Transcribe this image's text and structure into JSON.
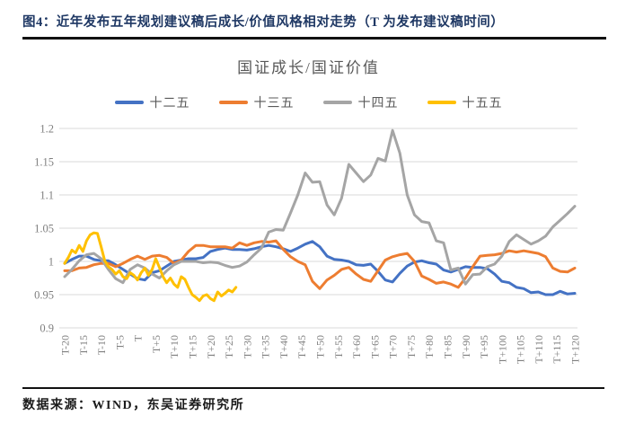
{
  "header": {
    "title": "图4：近年发布五年规划建议稿后成长/价值风格相对走势（T 为发布建议稿时间）"
  },
  "footer": {
    "source": "数据来源：WIND，东吴证券研究所"
  },
  "colors": {
    "heading": "#1F3864",
    "rule": "#111111",
    "axis_text": "#7F7F7F",
    "grid": "#D9D9D9",
    "chart_title_text": "#595959"
  },
  "chart_data": {
    "type": "line",
    "title": "国证成长/国证价值",
    "grid": true,
    "legend_position": "top",
    "ylim": [
      0.9,
      1.2
    ],
    "y_ticks": [
      "1.2",
      "1.15",
      "1.1",
      "1.05",
      "1",
      "0.95",
      "0.9"
    ],
    "x_range": [
      -20,
      120
    ],
    "x_ticks": [
      "T-20",
      "T-15",
      "T-10",
      "T-5",
      "T",
      "T+5",
      "T+10",
      "T+15",
      "T+20",
      "T+25",
      "T+30",
      "T+35",
      "T+40",
      "T+45",
      "T+50",
      "T+55",
      "T+60",
      "T+65",
      "T+70",
      "T+75",
      "T+80",
      "T+85",
      "T+90",
      "T+95",
      "T+100",
      "T+105",
      "T+110",
      "T+115",
      "T+120"
    ],
    "series": [
      {
        "name": "十二五",
        "color": "#4472C4",
        "x_start": -20,
        "x_step": 2,
        "values": [
          0.997,
          1.003,
          1.008,
          1.008,
          1.003,
          1.001,
          1.001,
          0.995,
          0.988,
          0.981,
          0.974,
          0.972,
          0.983,
          0.986,
          0.993,
          1.0,
          1.002,
          1.004,
          1.004,
          1.006,
          1.015,
          1.018,
          1.02,
          1.018,
          1.018,
          1.017,
          1.019,
          1.022,
          1.024,
          1.022,
          1.019,
          1.015,
          1.02,
          1.026,
          1.03,
          1.022,
          1.008,
          1.003,
          1.002,
          1.0,
          0.995,
          0.994,
          0.996,
          0.985,
          0.972,
          0.969,
          0.982,
          0.993,
          0.999,
          1.001,
          0.998,
          0.996,
          0.987,
          0.984,
          0.988,
          0.992,
          0.991,
          0.991,
          0.989,
          0.981,
          0.97,
          0.968,
          0.961,
          0.959,
          0.953,
          0.954,
          0.95,
          0.95,
          0.955,
          0.951,
          0.952
        ]
      },
      {
        "name": "十三五",
        "color": "#ED7D31",
        "x_start": -20,
        "x_step": 2,
        "values": [
          0.986,
          0.986,
          0.99,
          0.991,
          0.995,
          0.997,
          0.997,
          0.992,
          0.997,
          1.003,
          1.008,
          1.003,
          1.008,
          1.009,
          1.006,
          0.997,
          1.002,
          1.015,
          1.024,
          1.024,
          1.022,
          1.022,
          1.022,
          1.02,
          1.028,
          1.024,
          1.028,
          1.03,
          1.029,
          1.031,
          1.018,
          1.007,
          1.0,
          0.995,
          0.97,
          0.959,
          0.972,
          0.979,
          0.988,
          0.991,
          0.981,
          0.973,
          0.97,
          0.986,
          1.002,
          1.007,
          1.01,
          1.012,
          1.0,
          0.978,
          0.973,
          0.967,
          0.969,
          0.966,
          0.961,
          0.975,
          0.992,
          1.008,
          1.009,
          1.01,
          1.012,
          1.016,
          1.014,
          1.016,
          1.014,
          1.012,
          1.007,
          0.99,
          0.985,
          0.984,
          0.99
        ]
      },
      {
        "name": "十四五",
        "color": "#A5A5A5",
        "x_start": -20,
        "x_step": 2,
        "values": [
          0.977,
          0.988,
          1.001,
          1.01,
          1.012,
          1.004,
          0.988,
          0.974,
          0.968,
          0.988,
          0.995,
          0.99,
          0.981,
          0.975,
          0.986,
          0.995,
          1.0,
          1.0,
          1.0,
          0.998,
          0.999,
          0.998,
          0.994,
          0.991,
          0.993,
          0.999,
          1.01,
          1.02,
          1.044,
          1.048,
          1.047,
          1.073,
          1.1,
          1.133,
          1.119,
          1.12,
          1.085,
          1.07,
          1.095,
          1.146,
          1.133,
          1.12,
          1.13,
          1.155,
          1.151,
          1.197,
          1.163,
          1.1,
          1.07,
          1.06,
          1.058,
          1.031,
          1.028,
          0.987,
          0.99,
          0.966,
          0.98,
          0.981,
          0.992,
          0.996,
          1.008,
          1.03,
          1.04,
          1.033,
          1.026,
          1.031,
          1.038,
          1.052,
          1.062,
          1.072,
          1.083
        ]
      },
      {
        "name": "十五五",
        "color": "#FFC000",
        "x_start": -20,
        "x_step": 1,
        "values": [
          0.997,
          1.006,
          1.017,
          1.013,
          1.024,
          1.015,
          1.031,
          1.04,
          1.043,
          1.042,
          1.022,
          1.001,
          0.992,
          0.988,
          0.981,
          0.986,
          0.977,
          0.974,
          0.983,
          0.979,
          0.972,
          0.983,
          0.99,
          0.979,
          0.988,
          1.004,
          0.991,
          0.977,
          0.968,
          0.975,
          0.966,
          0.961,
          0.977,
          0.973,
          0.961,
          0.95,
          0.946,
          0.941,
          0.948,
          0.95,
          0.944,
          0.941,
          0.954,
          0.948,
          0.952,
          0.957,
          0.954,
          0.961
        ]
      }
    ]
  }
}
